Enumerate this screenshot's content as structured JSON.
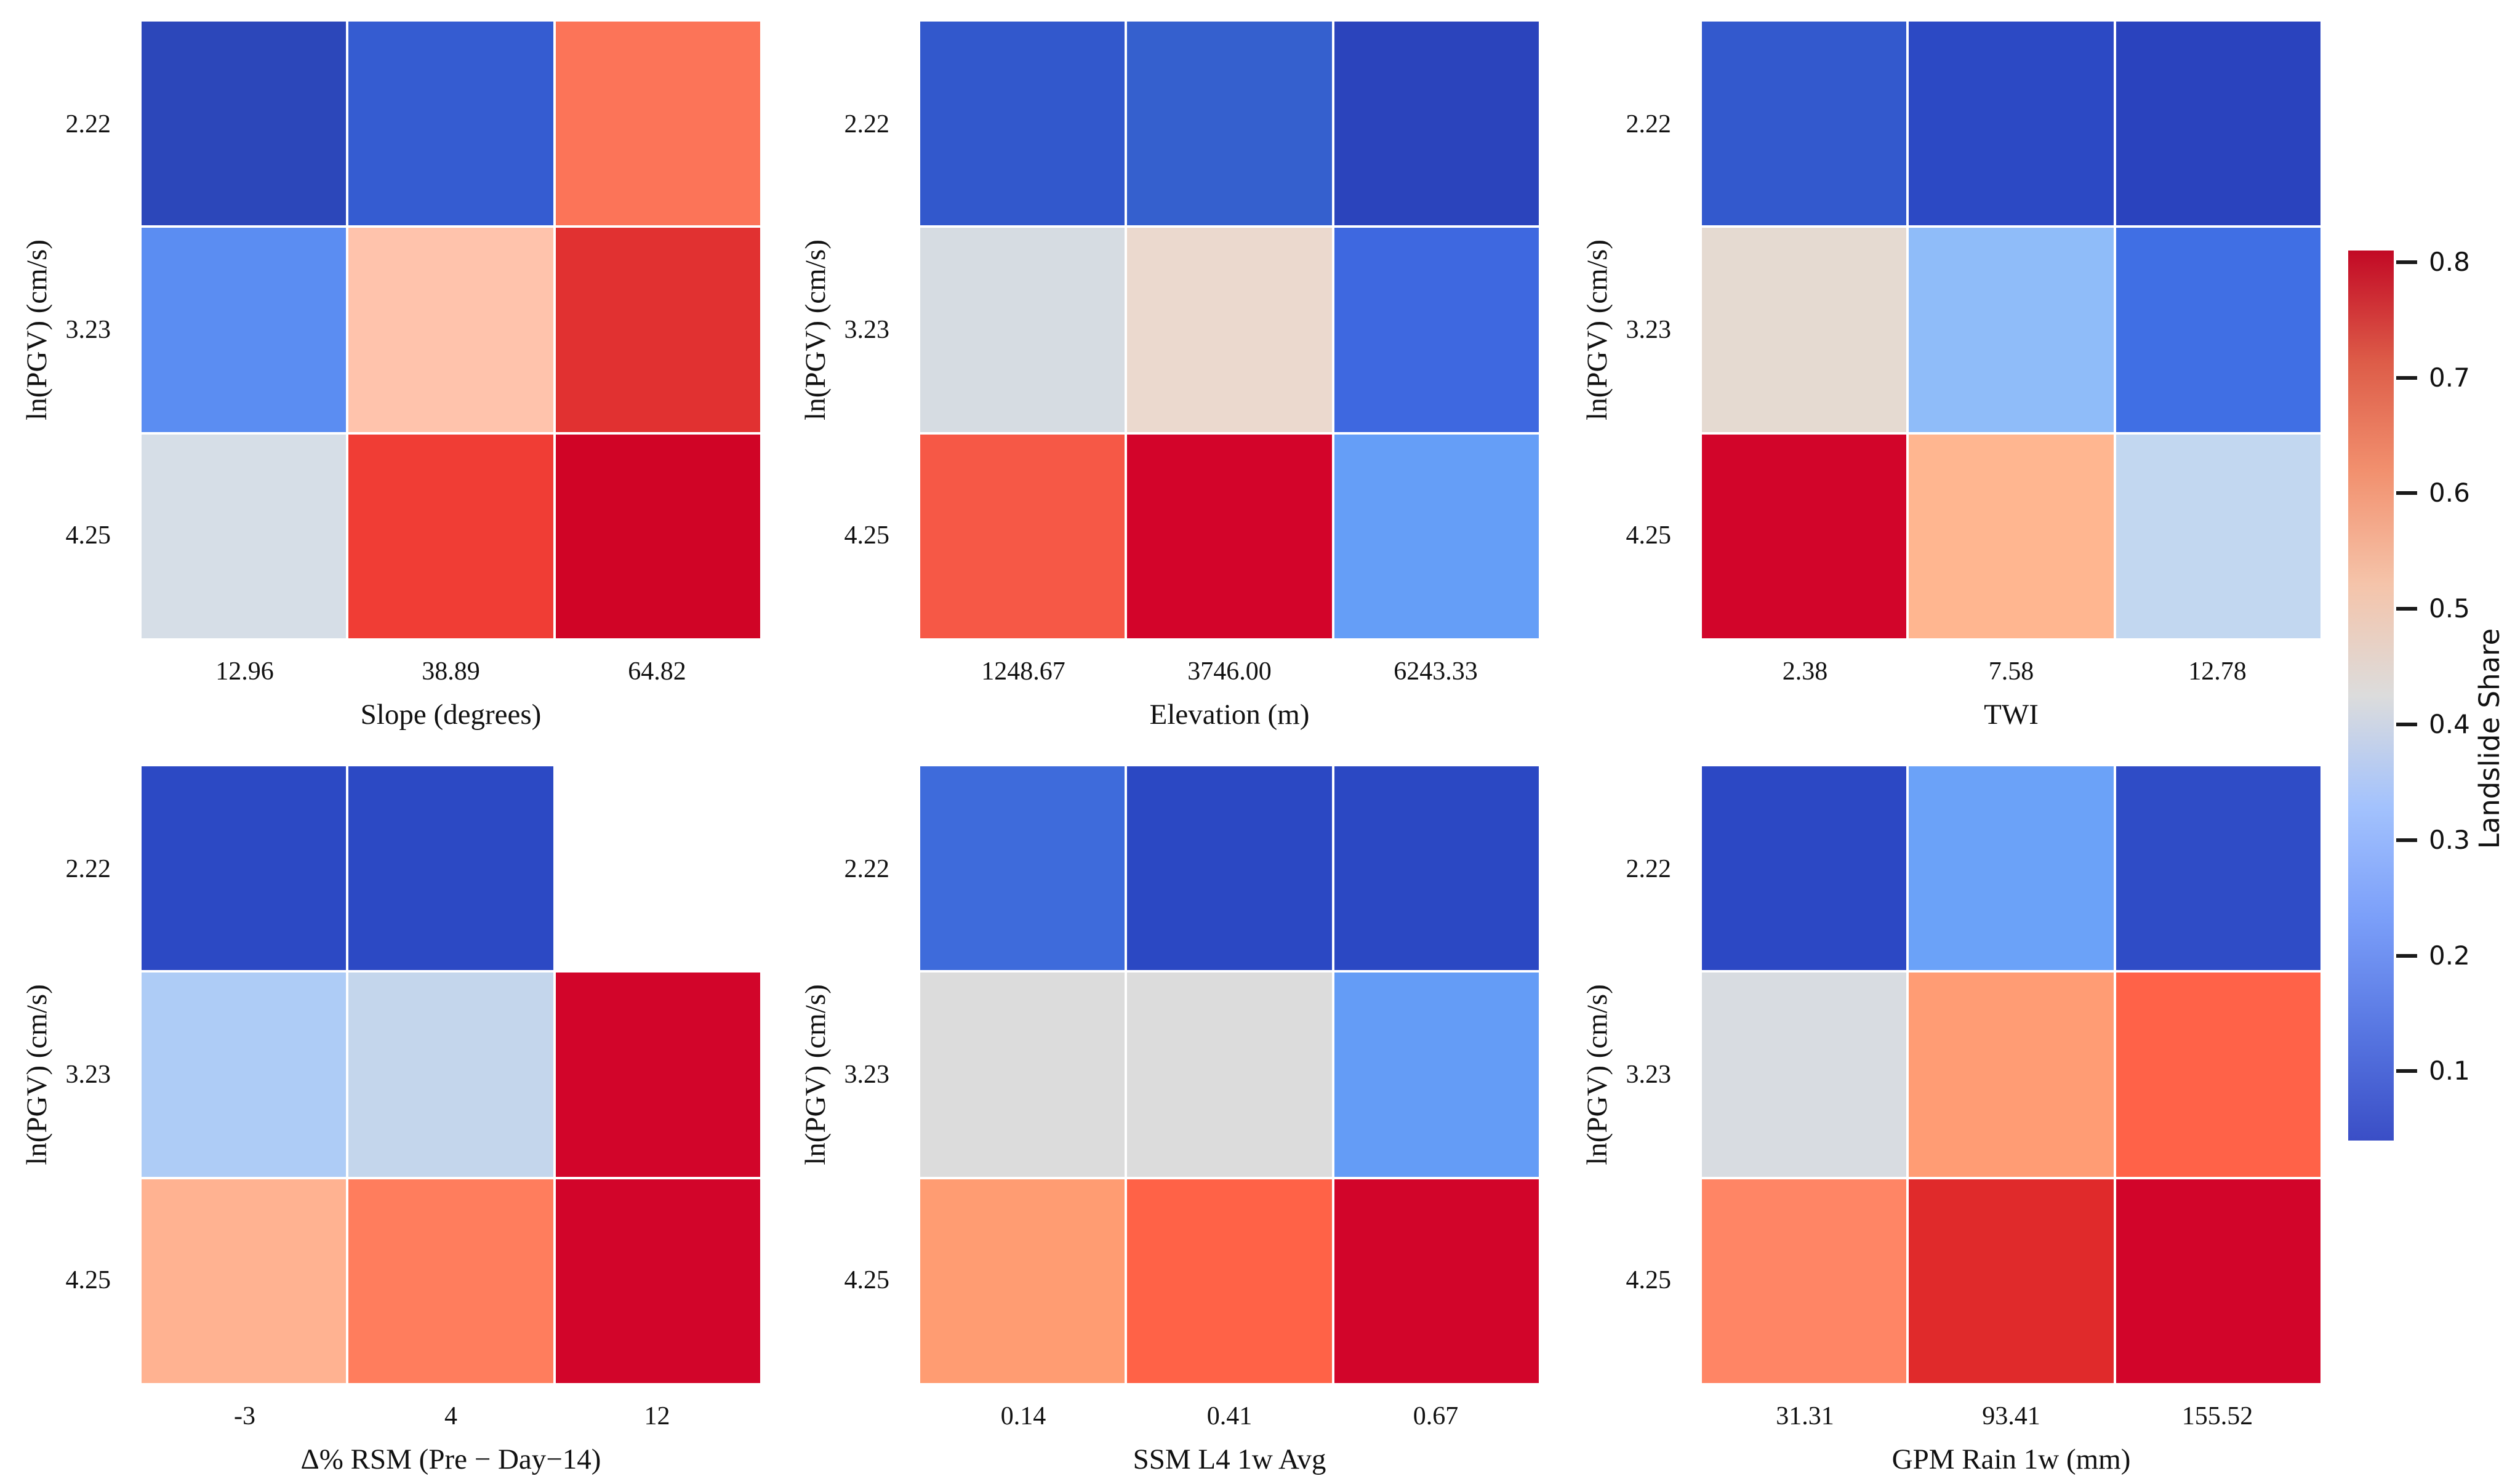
{
  "figure": {
    "y_axis": {
      "label": "ln(PGV) (cm/s)",
      "tick_labels": [
        "2.22",
        "3.23",
        "4.25"
      ]
    },
    "colorbar": {
      "label": "Landslide Share",
      "tick_labels": [
        "0.8",
        "0.7",
        "0.6",
        "0.5",
        "0.4",
        "0.3",
        "0.2",
        "0.1"
      ],
      "tick_values": [
        0.8,
        0.7,
        0.6,
        0.5,
        0.4,
        0.3,
        0.2,
        0.1
      ],
      "vmin": 0.04,
      "vmax": 0.81,
      "colormap": "coolwarm",
      "top_color": "#c20925",
      "mid_color": "#dcdcdc",
      "bottom_color": "#3a4ec6"
    }
  },
  "chart_data": [
    {
      "type": "heatmap",
      "xlabel": "Slope (degrees)",
      "x_tick_labels": [
        "12.96",
        "38.89",
        "64.82"
      ],
      "y_tick_labels": [
        "2.22",
        "3.23",
        "4.25"
      ],
      "values": [
        [
          0.05,
          0.11,
          0.64
        ],
        [
          0.21,
          0.52,
          0.74
        ],
        [
          0.4,
          0.72,
          0.79
        ]
      ],
      "cell_colors": [
        [
          "#2c47ba",
          "#355cd1",
          "#fc7458"
        ],
        [
          "#5b8df2",
          "#ffc3ac",
          "#e13131"
        ],
        [
          "#d6dee7",
          "#f03d35",
          "#d00426"
        ]
      ]
    },
    {
      "type": "heatmap",
      "xlabel": "Elevation (m)",
      "x_tick_labels": [
        "1248.67",
        "3746.00",
        "6243.33"
      ],
      "y_tick_labels": [
        "2.22",
        "3.23",
        "4.25"
      ],
      "values": [
        [
          0.1,
          0.11,
          0.06
        ],
        [
          0.4,
          0.46,
          0.14
        ],
        [
          0.68,
          0.79,
          0.25
        ]
      ],
      "cell_colors": [
        [
          "#3258cc",
          "#3560ce",
          "#2b44bc"
        ],
        [
          "#d6dce2",
          "#ebd9ce",
          "#3e68e0"
        ],
        [
          "#f65846",
          "#d3042a",
          "#659ef7"
        ]
      ]
    },
    {
      "type": "heatmap",
      "xlabel": "TWI",
      "x_tick_labels": [
        "2.38",
        "7.58",
        "12.78"
      ],
      "y_tick_labels": [
        "2.22",
        "3.23",
        "4.25"
      ],
      "values": [
        [
          0.1,
          0.07,
          0.05
        ],
        [
          0.46,
          0.31,
          0.15
        ],
        [
          0.79,
          0.56,
          0.37
        ]
      ],
      "cell_colors": [
        [
          "#3359cd",
          "#2c49c4",
          "#2a43be"
        ],
        [
          "#e5dad1",
          "#8fbcf9",
          "#406fe4"
        ],
        [
          "#d2052a",
          "#ffb690",
          "#c2d7f0"
        ]
      ]
    },
    {
      "type": "heatmap",
      "xlabel": "Δ% RSM (Pre − Day−14)",
      "x_tick_labels": [
        "-3",
        "4",
        "12"
      ],
      "y_tick_labels": [
        "2.22",
        "3.23",
        "4.25"
      ],
      "values": [
        [
          0.06,
          0.06,
          null
        ],
        [
          0.34,
          0.38,
          0.79
        ],
        [
          0.56,
          0.64,
          0.79
        ]
      ],
      "cell_colors": [
        [
          "#2c49c4",
          "#2c49c4",
          null
        ],
        [
          "#aeccf6",
          "#c4d6ec",
          "#d2052a"
        ],
        [
          "#ffb291",
          "#ff7d5d",
          "#d2052a"
        ]
      ]
    },
    {
      "type": "heatmap",
      "xlabel": "SSM L4 1w Avg",
      "x_tick_labels": [
        "0.14",
        "0.41",
        "0.67"
      ],
      "y_tick_labels": [
        "2.22",
        "3.23",
        "4.25"
      ],
      "values": [
        [
          0.14,
          0.06,
          0.05
        ],
        [
          0.42,
          0.42,
          0.25
        ],
        [
          0.59,
          0.67,
          0.79
        ]
      ],
      "cell_colors": [
        [
          "#3e6bdb",
          "#2b48c3",
          "#2b48c3"
        ],
        [
          "#dcdcdc",
          "#dcdcdc",
          "#649cf6"
        ],
        [
          "#ff9c72",
          "#ff6247",
          "#d2052a"
        ]
      ]
    },
    {
      "type": "heatmap",
      "xlabel": "GPM Rain 1w (mm)",
      "x_tick_labels": [
        "31.31",
        "93.41",
        "155.52"
      ],
      "y_tick_labels": [
        "2.22",
        "3.23",
        "4.25"
      ],
      "values": [
        [
          0.06,
          0.25,
          0.07
        ],
        [
          0.41,
          0.59,
          0.67
        ],
        [
          0.62,
          0.75,
          0.79
        ]
      ],
      "cell_colors": [
        [
          "#2c48c4",
          "#6ba2f8",
          "#2f4cc6"
        ],
        [
          "#d8dce1",
          "#ff9c74",
          "#ff6248"
        ],
        [
          "#ff8565",
          "#e02a2b",
          "#d2052a"
        ]
      ]
    }
  ]
}
